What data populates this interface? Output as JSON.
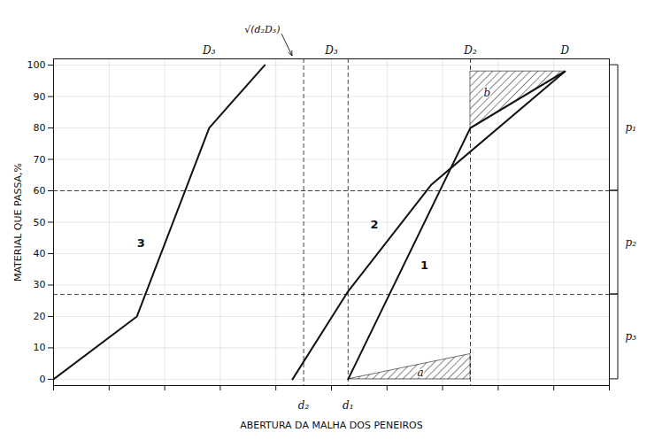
{
  "chart_data": {
    "type": "line",
    "xlabel": "ABERTURA DA MALHA DOS PENEIROS",
    "ylabel": "MATERIAL QUE PASSA,%",
    "xlim": [
      0,
      10
    ],
    "ylim": [
      -2,
      102
    ],
    "xticks": [
      0,
      1,
      2,
      3,
      4,
      5,
      6,
      7,
      8,
      9,
      10
    ],
    "yticks": [
      0,
      10,
      20,
      30,
      40,
      50,
      60,
      70,
      80,
      90,
      100
    ],
    "grid": true,
    "tick_labels": "y",
    "color": "#111111",
    "series": [
      {
        "x": [
          0.0,
          1.5,
          2.8,
          3.8
        ],
        "values": [
          0,
          20,
          80,
          100
        ]
      },
      {
        "x": [
          4.3,
          5.3,
          6.8,
          9.2
        ],
        "values": [
          0,
          28,
          62,
          98
        ]
      },
      {
        "x": [
          5.3,
          7.5,
          9.2
        ],
        "values": [
          0,
          80,
          98
        ]
      }
    ],
    "curve_labels": [
      {
        "text": "3",
        "x": 1.5,
        "y": 42
      },
      {
        "text": "2",
        "x": 5.7,
        "y": 48
      },
      {
        "text": "1",
        "x": 6.6,
        "y": 35
      }
    ],
    "hatched_regions": [
      {
        "x": [
          5.3,
          7.5,
          7.5
        ],
        "y": [
          0,
          0,
          8
        ],
        "label": "a",
        "label_x": 6.6,
        "label_y": 2
      },
      {
        "x": [
          7.5,
          9.2,
          7.5
        ],
        "y": [
          80,
          98,
          98
        ],
        "label": "b",
        "label_x": 7.8,
        "label_y": 91
      }
    ],
    "hlines": [
      60,
      27
    ],
    "vlines": [
      4.5,
      5.3,
      7.5
    ],
    "top_labels": [
      {
        "text": "D₃",
        "x": 2.8
      },
      {
        "text": "D₃",
        "x": 5.0
      },
      {
        "text": "D₂",
        "x": 7.5
      },
      {
        "text": "D",
        "x": 9.2
      }
    ],
    "arrow_label": {
      "text": "√(d₂D₃)",
      "x": 4.3
    },
    "bottom_labels": [
      {
        "text": "d₂",
        "x": 4.5
      },
      {
        "text": "d₁",
        "x": 5.3
      }
    ],
    "brackets": [
      {
        "text": "p₁",
        "from": 60,
        "to": 100
      },
      {
        "text": "p₂",
        "from": 27,
        "to": 60
      },
      {
        "text": "p₃",
        "from": 0,
        "to": 27
      }
    ]
  }
}
